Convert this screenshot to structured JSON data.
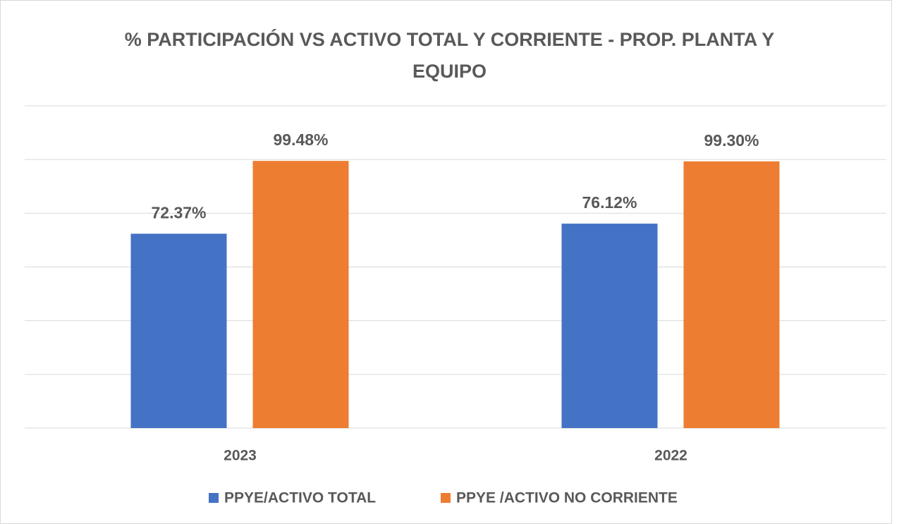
{
  "chart_data": {
    "type": "bar",
    "title": "% PARTICIPACIÓN VS ACTIVO TOTAL Y CORRIENTE - PROP. PLANTA Y EQUIPO",
    "categories": [
      "2023",
      "2022"
    ],
    "series": [
      {
        "name": "PPYE/ACTIVO TOTAL",
        "color": "#4472c4",
        "values": [
          72.37,
          76.12
        ],
        "value_labels": [
          "72.37%",
          "76.12%"
        ]
      },
      {
        "name": "PPYE /ACTIVO NO CORRIENTE",
        "color": "#ed7d31",
        "values": [
          99.48,
          99.3
        ],
        "value_labels": [
          "99.48%",
          "99.30%"
        ]
      }
    ],
    "ylim": [
      0,
      120
    ],
    "yticks": [
      0,
      20,
      40,
      60,
      80,
      100,
      120
    ],
    "grid": true,
    "legend": "bottom"
  }
}
